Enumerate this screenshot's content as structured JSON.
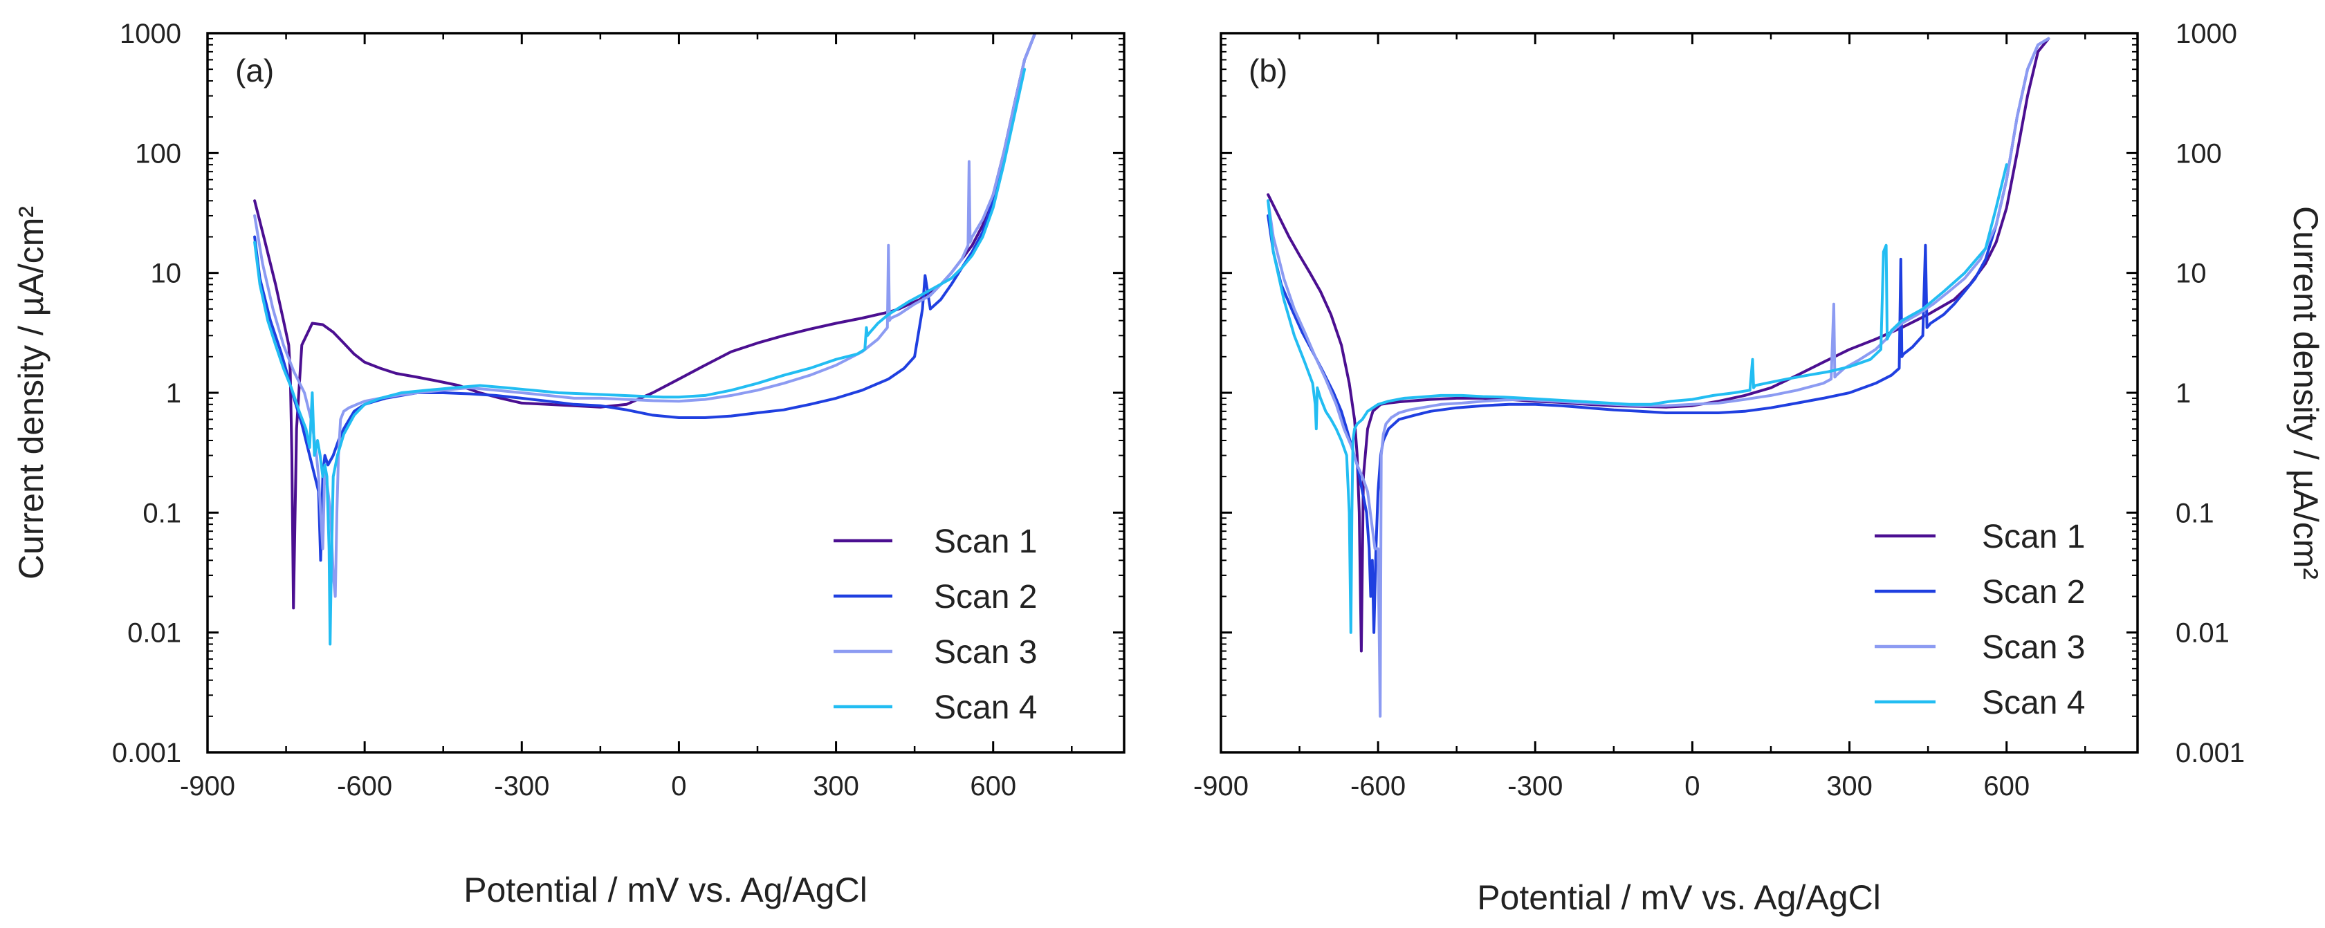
{
  "figure_title": "",
  "colors": {
    "Scan 1": "#4B0F91",
    "Scan 2": "#1F3FE0",
    "Scan 3": "#8C9BF2",
    "Scan 4": "#22BDF2"
  },
  "chart_data": [
    {
      "panel_label": "(a)",
      "type": "line",
      "xlabel": "Potential / mV vs. Ag/AgCl",
      "ylabel": "Current density / µA/cm²",
      "yscale": "log",
      "xlim": [
        -900,
        850
      ],
      "ylim": [
        0.001,
        1000
      ],
      "x_ticks": [
        -900,
        -600,
        -300,
        0,
        300,
        600
      ],
      "x_tick_labels": [
        "-900",
        "-600",
        "-300",
        "0",
        "300",
        "600"
      ],
      "y_ticks": [
        0.001,
        0.01,
        0.1,
        1,
        10,
        100,
        1000
      ],
      "y_tick_labels": [
        "0.001",
        "0.01",
        "0.1",
        "1",
        "10",
        "100",
        "1000"
      ],
      "y_axis_side": "left",
      "legend_position": "bottom-right",
      "series": [
        {
          "name": "Scan 1",
          "x": [
            -810,
            -790,
            -770,
            -755,
            -745,
            -742,
            -739,
            -736,
            -730,
            -720,
            -700,
            -680,
            -660,
            -640,
            -620,
            -600,
            -570,
            -540,
            -500,
            -460,
            -420,
            -380,
            -340,
            -300,
            -250,
            -200,
            -150,
            -100,
            -50,
            0,
            50,
            100,
            150,
            200,
            250,
            300,
            350,
            380,
            400,
            420,
            440,
            460,
            480,
            500,
            520,
            540,
            560,
            580,
            600,
            620,
            640,
            660,
            680
          ],
          "y": [
            40,
            18,
            8,
            4,
            2.5,
            1.5,
            0.3,
            0.016,
            0.5,
            2.5,
            3.8,
            3.7,
            3.2,
            2.6,
            2.1,
            1.8,
            1.6,
            1.45,
            1.35,
            1.25,
            1.15,
            1,
            0.9,
            0.82,
            0.8,
            0.78,
            0.76,
            0.8,
            1,
            1.3,
            1.7,
            2.2,
            2.6,
            3,
            3.4,
            3.8,
            4.2,
            4.5,
            4.7,
            5,
            5.5,
            6,
            7,
            8,
            10,
            13,
            17,
            25,
            45,
            100,
            250,
            600,
            1000
          ]
        },
        {
          "name": "Scan 2",
          "x": [
            -810,
            -800,
            -780,
            -760,
            -745,
            -735,
            -720,
            -705,
            -695,
            -688,
            -684,
            -680,
            -676,
            -670,
            -660,
            -650,
            -640,
            -620,
            -600,
            -580,
            -560,
            -530,
            -500,
            -450,
            -400,
            -350,
            -300,
            -250,
            -200,
            -150,
            -100,
            -50,
            0,
            50,
            100,
            150,
            200,
            250,
            300,
            350,
            400,
            430,
            450,
            465,
            470,
            480,
            500,
            520,
            540,
            560,
            580,
            600,
            620,
            640,
            660,
            680
          ],
          "y": [
            20,
            9,
            4,
            2.2,
            1.3,
            0.9,
            0.55,
            0.3,
            0.2,
            0.15,
            0.04,
            0.2,
            0.3,
            0.25,
            0.3,
            0.4,
            0.5,
            0.7,
            0.8,
            0.85,
            0.9,
            0.95,
            1,
            1,
            0.98,
            0.95,
            0.9,
            0.85,
            0.8,
            0.78,
            0.72,
            0.65,
            0.62,
            0.62,
            0.64,
            0.68,
            0.72,
            0.8,
            0.9,
            1.05,
            1.3,
            1.6,
            2,
            5,
            9.5,
            5,
            6,
            8,
            11,
            15,
            22,
            40,
            90,
            250,
            600,
            1000
          ]
        },
        {
          "name": "Scan 3",
          "x": [
            -810,
            -795,
            -775,
            -755,
            -735,
            -715,
            -700,
            -692,
            -688,
            -684,
            -680,
            -676,
            -670,
            -665,
            -660,
            -656,
            -653,
            -650,
            -646,
            -640,
            -630,
            -615,
            -600,
            -570,
            -540,
            -500,
            -450,
            -400,
            -350,
            -300,
            -250,
            -200,
            -150,
            -100,
            -50,
            0,
            50,
            100,
            150,
            200,
            250,
            300,
            350,
            380,
            398,
            400,
            402,
            405,
            420,
            450,
            480,
            500,
            520,
            540,
            552,
            554,
            556,
            560,
            580,
            600,
            620,
            640,
            660,
            680
          ],
          "y": [
            30,
            12,
            5,
            2.5,
            1.5,
            1,
            0.55,
            0.3,
            0.2,
            0.1,
            0.05,
            0.25,
            0.15,
            0.1,
            0.03,
            0.02,
            0.1,
            0.3,
            0.6,
            0.7,
            0.75,
            0.8,
            0.85,
            0.9,
            0.95,
            1,
            1.05,
            1.1,
            1.05,
            1,
            0.95,
            0.9,
            0.9,
            0.88,
            0.86,
            0.85,
            0.88,
            0.95,
            1.05,
            1.2,
            1.4,
            1.7,
            2.2,
            2.8,
            3.5,
            17,
            4,
            4.2,
            4.5,
            5.5,
            6.5,
            8,
            10,
            13,
            17,
            85,
            18,
            20,
            28,
            45,
            100,
            250,
            600,
            1000
          ]
        },
        {
          "name": "Scan 4",
          "x": [
            -810,
            -800,
            -785,
            -770,
            -755,
            -740,
            -725,
            -712,
            -705,
            -700,
            -696,
            -690,
            -685,
            -680,
            -676,
            -672,
            -668,
            -666,
            -664,
            -660,
            -652,
            -640,
            -620,
            -600,
            -570,
            -530,
            -480,
            -430,
            -380,
            -330,
            -280,
            -230,
            -180,
            -130,
            -80,
            -30,
            0,
            50,
            100,
            150,
            200,
            250,
            300,
            340,
            355,
            358,
            360,
            365,
            380,
            400,
            440,
            480,
            520,
            540,
            560,
            580,
            600,
            620,
            640,
            660
          ],
          "y": [
            18,
            8,
            4,
            2.5,
            1.6,
            1.1,
            0.7,
            0.5,
            0.35,
            1,
            0.3,
            0.4,
            0.3,
            0.2,
            0.25,
            0.2,
            0.05,
            0.008,
            0.03,
            0.2,
            0.3,
            0.45,
            0.65,
            0.8,
            0.9,
            1,
            1.05,
            1.1,
            1.15,
            1.1,
            1.05,
            1,
            0.98,
            0.96,
            0.94,
            0.92,
            0.92,
            0.95,
            1.05,
            1.2,
            1.4,
            1.6,
            1.9,
            2.1,
            2.3,
            3.5,
            3,
            3.2,
            3.8,
            4.5,
            5.8,
            7.2,
            9,
            11,
            14,
            20,
            35,
            80,
            200,
            500
          ]
        }
      ]
    },
    {
      "panel_label": "(b)",
      "type": "line",
      "xlabel": "Potential / mV vs. Ag/AgCl",
      "ylabel": "Current density / µA/cm²",
      "yscale": "log",
      "xlim": [
        -900,
        850
      ],
      "ylim": [
        0.001,
        1000
      ],
      "x_ticks": [
        -900,
        -600,
        -300,
        0,
        300,
        600
      ],
      "x_tick_labels": [
        "-900",
        "-600",
        "-300",
        "0",
        "300",
        "600"
      ],
      "y_ticks": [
        0.001,
        0.01,
        0.1,
        1,
        10,
        100,
        1000
      ],
      "y_tick_labels": [
        "0.001",
        "0.01",
        "0.1",
        "1",
        "10",
        "100",
        "1000"
      ],
      "y_axis_side": "right",
      "legend_position": "bottom-right",
      "series": [
        {
          "name": "Scan 1",
          "x": [
            -810,
            -790,
            -770,
            -750,
            -730,
            -710,
            -690,
            -670,
            -655,
            -645,
            -640,
            -636,
            -632,
            -628,
            -620,
            -610,
            -595,
            -580,
            -560,
            -530,
            -500,
            -450,
            -400,
            -350,
            -300,
            -250,
            -200,
            -150,
            -100,
            -50,
            0,
            50,
            100,
            150,
            200,
            250,
            300,
            350,
            400,
            450,
            500,
            530,
            560,
            580,
            600,
            620,
            640,
            660,
            680
          ],
          "y": [
            45,
            30,
            20,
            14,
            10,
            7,
            4.5,
            2.5,
            1.2,
            0.6,
            0.3,
            0.1,
            0.007,
            0.2,
            0.5,
            0.7,
            0.8,
            0.82,
            0.84,
            0.86,
            0.88,
            0.9,
            0.9,
            0.88,
            0.85,
            0.83,
            0.8,
            0.78,
            0.77,
            0.76,
            0.78,
            0.85,
            0.95,
            1.1,
            1.4,
            1.8,
            2.3,
            2.8,
            3.5,
            4.5,
            6,
            8,
            12,
            18,
            35,
            100,
            300,
            700,
            900
          ]
        },
        {
          "name": "Scan 2",
          "x": [
            -810,
            -800,
            -785,
            -765,
            -745,
            -725,
            -705,
            -685,
            -670,
            -660,
            -650,
            -640,
            -630,
            -622,
            -617,
            -614,
            -611,
            -608,
            -604,
            -600,
            -595,
            -590,
            -580,
            -560,
            -530,
            -500,
            -450,
            -400,
            -350,
            -300,
            -250,
            -200,
            -150,
            -100,
            -50,
            0,
            50,
            100,
            150,
            200,
            250,
            300,
            350,
            380,
            395,
            398,
            400,
            403,
            420,
            440,
            445,
            448,
            455,
            480,
            500,
            520,
            540,
            560,
            580,
            600,
            620,
            640,
            660,
            680
          ],
          "y": [
            30,
            15,
            8,
            5,
            3.2,
            2.2,
            1.5,
            1,
            0.7,
            0.5,
            0.35,
            0.25,
            0.15,
            0.1,
            0.05,
            0.02,
            0.04,
            0.01,
            0.05,
            0.15,
            0.3,
            0.4,
            0.5,
            0.6,
            0.65,
            0.7,
            0.75,
            0.78,
            0.8,
            0.8,
            0.78,
            0.75,
            0.72,
            0.7,
            0.68,
            0.68,
            0.68,
            0.7,
            0.75,
            0.82,
            0.9,
            1,
            1.2,
            1.4,
            1.6,
            13,
            2,
            2.1,
            2.4,
            3,
            17,
            3.5,
            3.8,
            4.5,
            5.5,
            7,
            9,
            13,
            25,
            60,
            200,
            500,
            800,
            900
          ]
        },
        {
          "name": "Scan 3",
          "x": [
            -810,
            -800,
            -780,
            -760,
            -740,
            -720,
            -700,
            -680,
            -665,
            -650,
            -640,
            -630,
            -620,
            -612,
            -606,
            -600,
            -598,
            -596,
            -594,
            -590,
            -585,
            -575,
            -560,
            -540,
            -510,
            -480,
            -440,
            -400,
            -360,
            -320,
            -280,
            -240,
            -200,
            -150,
            -100,
            -50,
            0,
            50,
            100,
            150,
            200,
            250,
            265,
            270,
            272,
            275,
            290,
            320,
            350,
            370,
            380,
            390,
            400,
            430,
            460,
            490,
            520,
            550,
            580,
            600,
            620,
            640,
            660,
            680
          ],
          "y": [
            40,
            20,
            9,
            5,
            3.2,
            2,
            1.3,
            0.8,
            0.5,
            0.35,
            0.25,
            0.2,
            0.15,
            0.08,
            0.05,
            0.05,
            0.01,
            0.002,
            0.3,
            0.45,
            0.55,
            0.62,
            0.68,
            0.72,
            0.76,
            0.8,
            0.82,
            0.85,
            0.87,
            0.88,
            0.86,
            0.84,
            0.82,
            0.8,
            0.78,
            0.78,
            0.8,
            0.82,
            0.88,
            0.95,
            1.05,
            1.2,
            1.3,
            5.5,
            1.35,
            1.4,
            1.6,
            1.9,
            2.3,
            2.8,
            3.2,
            3.5,
            3.8,
            4.5,
            5.5,
            7,
            9,
            13,
            25,
            60,
            200,
            500,
            800,
            900
          ]
        },
        {
          "name": "Scan 4",
          "x": [
            -810,
            -800,
            -780,
            -760,
            -740,
            -725,
            -720,
            -718,
            -716,
            -710,
            -700,
            -690,
            -680,
            -670,
            -660,
            -655,
            -652,
            -650,
            -648,
            -645,
            -640,
            -630,
            -620,
            -600,
            -580,
            -550,
            -520,
            -480,
            -440,
            -400,
            -360,
            -320,
            -280,
            -240,
            -200,
            -160,
            -120,
            -80,
            -40,
            0,
            40,
            80,
            110,
            115,
            117,
            120,
            140,
            180,
            220,
            260,
            300,
            340,
            360,
            365,
            370,
            372,
            375,
            380,
            400,
            440,
            480,
            520,
            560,
            580,
            600
          ],
          "y": [
            40,
            15,
            6,
            3,
            1.8,
            1.2,
            0.8,
            0.5,
            1.1,
            0.9,
            0.7,
            0.6,
            0.5,
            0.4,
            0.3,
            0.1,
            0.01,
            0.1,
            0.4,
            0.5,
            0.55,
            0.6,
            0.7,
            0.8,
            0.85,
            0.9,
            0.92,
            0.95,
            0.95,
            0.93,
            0.92,
            0.9,
            0.88,
            0.86,
            0.84,
            0.82,
            0.8,
            0.8,
            0.85,
            0.88,
            0.95,
            1,
            1.05,
            1.9,
            1.1,
            1.15,
            1.2,
            1.3,
            1.4,
            1.5,
            1.65,
            1.9,
            2.3,
            15,
            17,
            2.8,
            3,
            3.3,
            4,
            5,
            7,
            10,
            16,
            35,
            80
          ]
        }
      ]
    }
  ]
}
